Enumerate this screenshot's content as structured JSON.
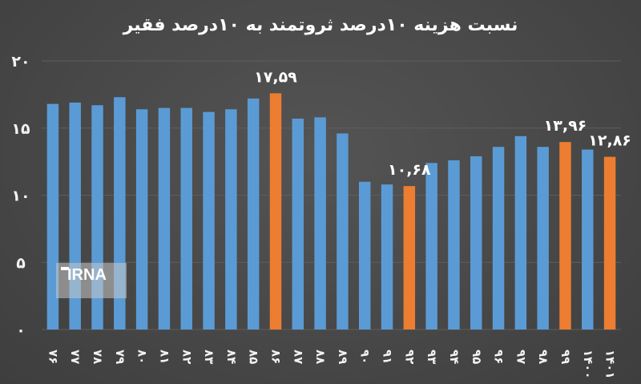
{
  "chart_data": {
    "type": "bar",
    "title": "نسبت هزینه ۱۰درصد ثروتمند به ۱۰درصد فقیر",
    "categories": [
      "۷۶",
      "۷۷",
      "۷۸",
      "۷۹",
      "۸۰",
      "۸۱",
      "۸۲",
      "۸۳",
      "۸۴",
      "۸۵",
      "۸۶",
      "۸۷",
      "۸۸",
      "۸۹",
      "۹۰",
      "۹۱",
      "۹۲",
      "۹۳",
      "۹۴",
      "۹۵",
      "۹۶",
      "۹۷",
      "۹۸",
      "۹۹",
      "۱۴۰۰",
      "۱۴۰۱"
    ],
    "values": [
      16.8,
      16.9,
      16.7,
      17.3,
      16.4,
      16.5,
      16.5,
      16.2,
      16.4,
      17.2,
      17.59,
      15.7,
      15.8,
      14.6,
      11.0,
      10.8,
      10.68,
      12.4,
      12.6,
      12.9,
      13.6,
      14.4,
      13.6,
      13.96,
      13.4,
      12.86
    ],
    "highlighted": [
      10,
      16,
      23,
      25
    ],
    "data_labels": [
      {
        "index": 10,
        "text": "۱۷,۵۹"
      },
      {
        "index": 16,
        "text": "۱۰,۶۸"
      },
      {
        "index": 23,
        "text": "۱۳,۹۶"
      },
      {
        "index": 25,
        "text": "۱۲,۸۶"
      }
    ],
    "yticks": [
      {
        "value": 0,
        "label": "۰"
      },
      {
        "value": 5,
        "label": "۵"
      },
      {
        "value": 10,
        "label": "۱۰"
      },
      {
        "value": 15,
        "label": "۱۵"
      },
      {
        "value": 20,
        "label": "۲۰"
      }
    ],
    "ylim": [
      0,
      20
    ],
    "grid": true,
    "colors": {
      "bar": "#5b9bd5",
      "highlight": "#ed7d31",
      "background": "#4a4a4a",
      "text": "#ffffff"
    }
  },
  "watermark": {
    "text": "IRNA"
  }
}
